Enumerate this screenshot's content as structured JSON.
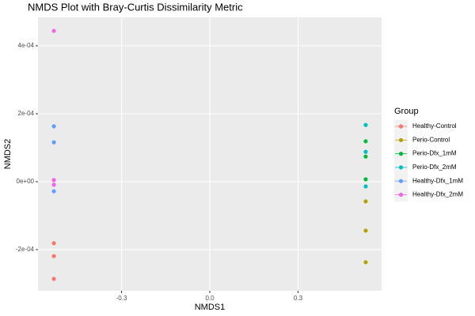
{
  "chart_data": {
    "type": "scatter",
    "title": "NMDS Plot with Bray-Curtis Dissimilarity Metric",
    "x_label": "NMDS1",
    "y_label": "NMDS2",
    "legend_title": "Group",
    "legend_position": "right",
    "grid": true,
    "xlim": [
      -0.584,
      0.584
    ],
    "ylim": [
      -0.0003209,
      0.0004837
    ],
    "xticks": [
      -0.3,
      {
        "value": 0,
        "label": "0.0"
      },
      0.3
    ],
    "yticks": [
      {
        "value": -0.0002,
        "label": "-2e-04"
      },
      {
        "value": 0,
        "label": "0e+00"
      },
      {
        "value": 0.0002,
        "label": "2e-04"
      },
      {
        "value": 0.0004,
        "label": "4e-04"
      }
    ],
    "series": [
      {
        "name": "Healthy-Control",
        "color": "#F8766D",
        "x": [
          -0.53,
          -0.53,
          -0.53
        ],
        "values": [
          -0.000181,
          -0.000219,
          -0.000286
        ]
      },
      {
        "name": "Perio-Control",
        "color": "#B79F00",
        "x": [
          0.53,
          0.53,
          0.53
        ],
        "values": [
          -5.8e-05,
          -0.000144,
          -0.000237
        ]
      },
      {
        "name": "Perio-Dfx_1mM",
        "color": "#00BA38",
        "x": [
          0.53,
          0.53,
          0.53
        ],
        "values": [
          0.000119,
          7.4e-05,
          7e-06
        ]
      },
      {
        "name": "Perio-Dfx_2mM",
        "color": "#00BFC4",
        "x": [
          0.53,
          0.53,
          0.53
        ],
        "values": [
          0.000167,
          8.8e-05,
          -1.4e-05
        ]
      },
      {
        "name": "Healthy-Dfx_1mM",
        "color": "#619CFF",
        "x": [
          -0.53,
          -0.53,
          -0.53
        ],
        "values": [
          0.000163,
          0.000116,
          -2.8e-05
        ]
      },
      {
        "name": "Healthy-Dfx_2mM",
        "color": "#F564E3",
        "x": [
          -0.53,
          -0.53,
          -0.53
        ],
        "values": [
          0.000444,
          5e-06,
          -9e-06
        ]
      }
    ]
  }
}
